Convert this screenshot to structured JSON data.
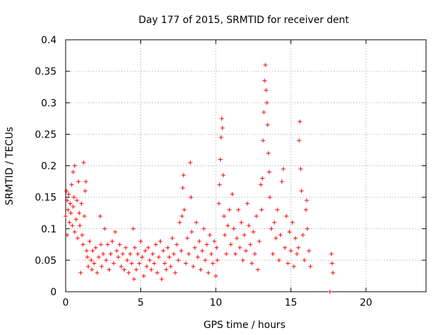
{
  "chart_data": {
    "type": "scatter",
    "title": "Day 177 of 2015, SRMTID for receiver dent",
    "xlabel": "GPS time / hours",
    "ylabel": "SRMTID / TECUs",
    "xlim": [
      0,
      24
    ],
    "ylim": [
      0,
      0.4
    ],
    "x_ticks": [
      "0",
      "5",
      "10",
      "15",
      "20"
    ],
    "x_tick_values": [
      0,
      5,
      10,
      15,
      20
    ],
    "y_ticks": [
      "0",
      "0.05",
      "0.1",
      "0.15",
      "0.2",
      "0.25",
      "0.3",
      "0.35",
      "0.4"
    ],
    "y_tick_values": [
      0,
      0.05,
      0.1,
      0.15,
      0.2,
      0.25,
      0.3,
      0.35,
      0.4
    ],
    "grid": true,
    "marker": "plus",
    "series": [
      {
        "color": "#ff0000",
        "points": [
          [
            0.0,
            0.12
          ],
          [
            0.05,
            0.16
          ],
          [
            0.1,
            0.145
          ],
          [
            0.1,
            0.09
          ],
          [
            0.15,
            0.13
          ],
          [
            0.2,
            0.155
          ],
          [
            0.25,
            0.11
          ],
          [
            0.3,
            0.14
          ],
          [
            0.35,
            0.125
          ],
          [
            0.4,
            0.17
          ],
          [
            0.45,
            0.105
          ],
          [
            0.5,
            0.19
          ],
          [
            0.5,
            0.135
          ],
          [
            0.55,
            0.15
          ],
          [
            0.6,
            0.095
          ],
          [
            0.6,
            0.2
          ],
          [
            0.7,
            0.115
          ],
          [
            0.75,
            0.145
          ],
          [
            0.8,
            0.085
          ],
          [
            0.85,
            0.175
          ],
          [
            0.9,
            0.125
          ],
          [
            0.95,
            0.105
          ],
          [
            1.0,
            0.03
          ],
          [
            1.05,
            0.14
          ],
          [
            1.1,
            0.09
          ],
          [
            1.15,
            0.075
          ],
          [
            1.2,
            0.205
          ],
          [
            1.25,
            0.12
          ],
          [
            1.3,
            0.16
          ],
          [
            1.35,
            0.175
          ],
          [
            1.4,
            0.065
          ],
          [
            1.45,
            0.055
          ],
          [
            1.5,
            0.04
          ],
          [
            1.6,
            0.08
          ],
          [
            1.7,
            0.05
          ],
          [
            1.75,
            0.035
          ],
          [
            1.8,
            0.065
          ],
          [
            1.9,
            0.045
          ],
          [
            2.0,
            0.07
          ],
          [
            2.1,
            0.03
          ],
          [
            2.2,
            0.055
          ],
          [
            2.3,
            0.12
          ],
          [
            2.35,
            0.075
          ],
          [
            2.4,
            0.04
          ],
          [
            2.5,
            0.06
          ],
          [
            2.6,
            0.1
          ],
          [
            2.7,
            0.05
          ],
          [
            2.8,
            0.075
          ],
          [
            2.9,
            0.035
          ],
          [
            3.0,
            0.06
          ],
          [
            3.1,
            0.08
          ],
          [
            3.2,
            0.045
          ],
          [
            3.3,
            0.095
          ],
          [
            3.4,
            0.065
          ],
          [
            3.5,
            0.055
          ],
          [
            3.6,
            0.075
          ],
          [
            3.7,
            0.04
          ],
          [
            3.8,
            0.06
          ],
          [
            3.9,
            0.035
          ],
          [
            4.0,
            0.07
          ],
          [
            4.1,
            0.05
          ],
          [
            4.2,
            0.03
          ],
          [
            4.3,
            0.06
          ],
          [
            4.4,
            0.045
          ],
          [
            4.5,
            0.1
          ],
          [
            4.55,
            0.02
          ],
          [
            4.6,
            0.07
          ],
          [
            4.7,
            0.035
          ],
          [
            4.8,
            0.06
          ],
          [
            4.9,
            0.045
          ],
          [
            5.0,
            0.08
          ],
          [
            5.1,
            0.055
          ],
          [
            5.2,
            0.025
          ],
          [
            5.3,
            0.065
          ],
          [
            5.4,
            0.04
          ],
          [
            5.5,
            0.07
          ],
          [
            5.6,
            0.05
          ],
          [
            5.7,
            0.035
          ],
          [
            5.8,
            0.06
          ],
          [
            5.9,
            0.045
          ],
          [
            6.0,
            0.075
          ],
          [
            6.1,
            0.03
          ],
          [
            6.2,
            0.055
          ],
          [
            6.3,
            0.08
          ],
          [
            6.4,
            0.02
          ],
          [
            6.5,
            0.065
          ],
          [
            6.6,
            0.045
          ],
          [
            6.7,
            0.035
          ],
          [
            6.8,
            0.07
          ],
          [
            6.9,
            0.055
          ],
          [
            7.0,
            0.04
          ],
          [
            7.1,
            0.085
          ],
          [
            7.2,
            0.06
          ],
          [
            7.3,
            0.03
          ],
          [
            7.4,
            0.075
          ],
          [
            7.5,
            0.05
          ],
          [
            7.6,
            0.11
          ],
          [
            7.7,
            0.065
          ],
          [
            7.75,
            0.12
          ],
          [
            7.8,
            0.165
          ],
          [
            7.85,
            0.185
          ],
          [
            7.9,
            0.13
          ],
          [
            8.0,
            0.045
          ],
          [
            8.1,
            0.085
          ],
          [
            8.2,
            0.06
          ],
          [
            8.3,
            0.205
          ],
          [
            8.35,
            0.15
          ],
          [
            8.4,
            0.095
          ],
          [
            8.5,
            0.04
          ],
          [
            8.6,
            0.07
          ],
          [
            8.7,
            0.11
          ],
          [
            8.8,
            0.055
          ],
          [
            8.9,
            0.08
          ],
          [
            9.0,
            0.035
          ],
          [
            9.1,
            0.065
          ],
          [
            9.2,
            0.1
          ],
          [
            9.3,
            0.05
          ],
          [
            9.4,
            0.075
          ],
          [
            9.5,
            0.03
          ],
          [
            9.6,
            0.09
          ],
          [
            9.7,
            0.06
          ],
          [
            9.8,
            0.045
          ],
          [
            9.9,
            0.08
          ],
          [
            10.0,
            0.025
          ],
          [
            10.05,
            0.07
          ],
          [
            10.1,
            0.05
          ],
          [
            10.2,
            0.14
          ],
          [
            10.25,
            0.17
          ],
          [
            10.3,
            0.21
          ],
          [
            10.35,
            0.245
          ],
          [
            10.4,
            0.275
          ],
          [
            10.45,
            0.26
          ],
          [
            10.5,
            0.185
          ],
          [
            10.55,
            0.12
          ],
          [
            10.6,
            0.09
          ],
          [
            10.7,
            0.06
          ],
          [
            10.8,
            0.105
          ],
          [
            10.9,
            0.13
          ],
          [
            11.0,
            0.075
          ],
          [
            11.1,
            0.155
          ],
          [
            11.2,
            0.1
          ],
          [
            11.3,
            0.06
          ],
          [
            11.4,
            0.085
          ],
          [
            11.5,
            0.13
          ],
          [
            11.6,
            0.07
          ],
          [
            11.7,
            0.11
          ],
          [
            11.8,
            0.05
          ],
          [
            11.9,
            0.09
          ],
          [
            12.0,
            0.065
          ],
          [
            12.1,
            0.14
          ],
          [
            12.2,
            0.105
          ],
          [
            12.3,
            0.075
          ],
          [
            12.4,
            0.045
          ],
          [
            12.5,
            0.095
          ],
          [
            12.6,
            0.06
          ],
          [
            12.7,
            0.12
          ],
          [
            12.8,
            0.035
          ],
          [
            12.9,
            0.08
          ],
          [
            13.0,
            0.17
          ],
          [
            13.05,
            0.13
          ],
          [
            13.1,
            0.18
          ],
          [
            13.15,
            0.24
          ],
          [
            13.2,
            0.285
          ],
          [
            13.25,
            0.335
          ],
          [
            13.3,
            0.36
          ],
          [
            13.35,
            0.32
          ],
          [
            13.4,
            0.3
          ],
          [
            13.45,
            0.265
          ],
          [
            13.5,
            0.22
          ],
          [
            13.55,
            0.19
          ],
          [
            13.6,
            0.15
          ],
          [
            13.7,
            0.1
          ],
          [
            13.8,
            0.06
          ],
          [
            13.9,
            0.11
          ],
          [
            14.0,
            0.085
          ],
          [
            14.1,
            0.13
          ],
          [
            14.2,
            0.05
          ],
          [
            14.3,
            0.09
          ],
          [
            14.4,
            0.175
          ],
          [
            14.5,
            0.195
          ],
          [
            14.6,
            0.07
          ],
          [
            14.7,
            0.12
          ],
          [
            14.8,
            0.045
          ],
          [
            14.9,
            0.095
          ],
          [
            15.0,
            0.065
          ],
          [
            15.1,
            0.11
          ],
          [
            15.2,
            0.04
          ],
          [
            15.3,
            0.085
          ],
          [
            15.4,
            0.06
          ],
          [
            15.5,
            0.07
          ],
          [
            15.55,
            0.24
          ],
          [
            15.6,
            0.27
          ],
          [
            15.65,
            0.195
          ],
          [
            15.7,
            0.16
          ],
          [
            15.8,
            0.09
          ],
          [
            15.9,
            0.05
          ],
          [
            16.0,
            0.13
          ],
          [
            16.05,
            0.145
          ],
          [
            16.1,
            0.1
          ],
          [
            16.2,
            0.065
          ],
          [
            16.3,
            0.04
          ],
          [
            17.6,
            0.0
          ],
          [
            17.7,
            0.06
          ],
          [
            17.75,
            0.045
          ],
          [
            17.8,
            0.03
          ]
        ]
      }
    ]
  }
}
